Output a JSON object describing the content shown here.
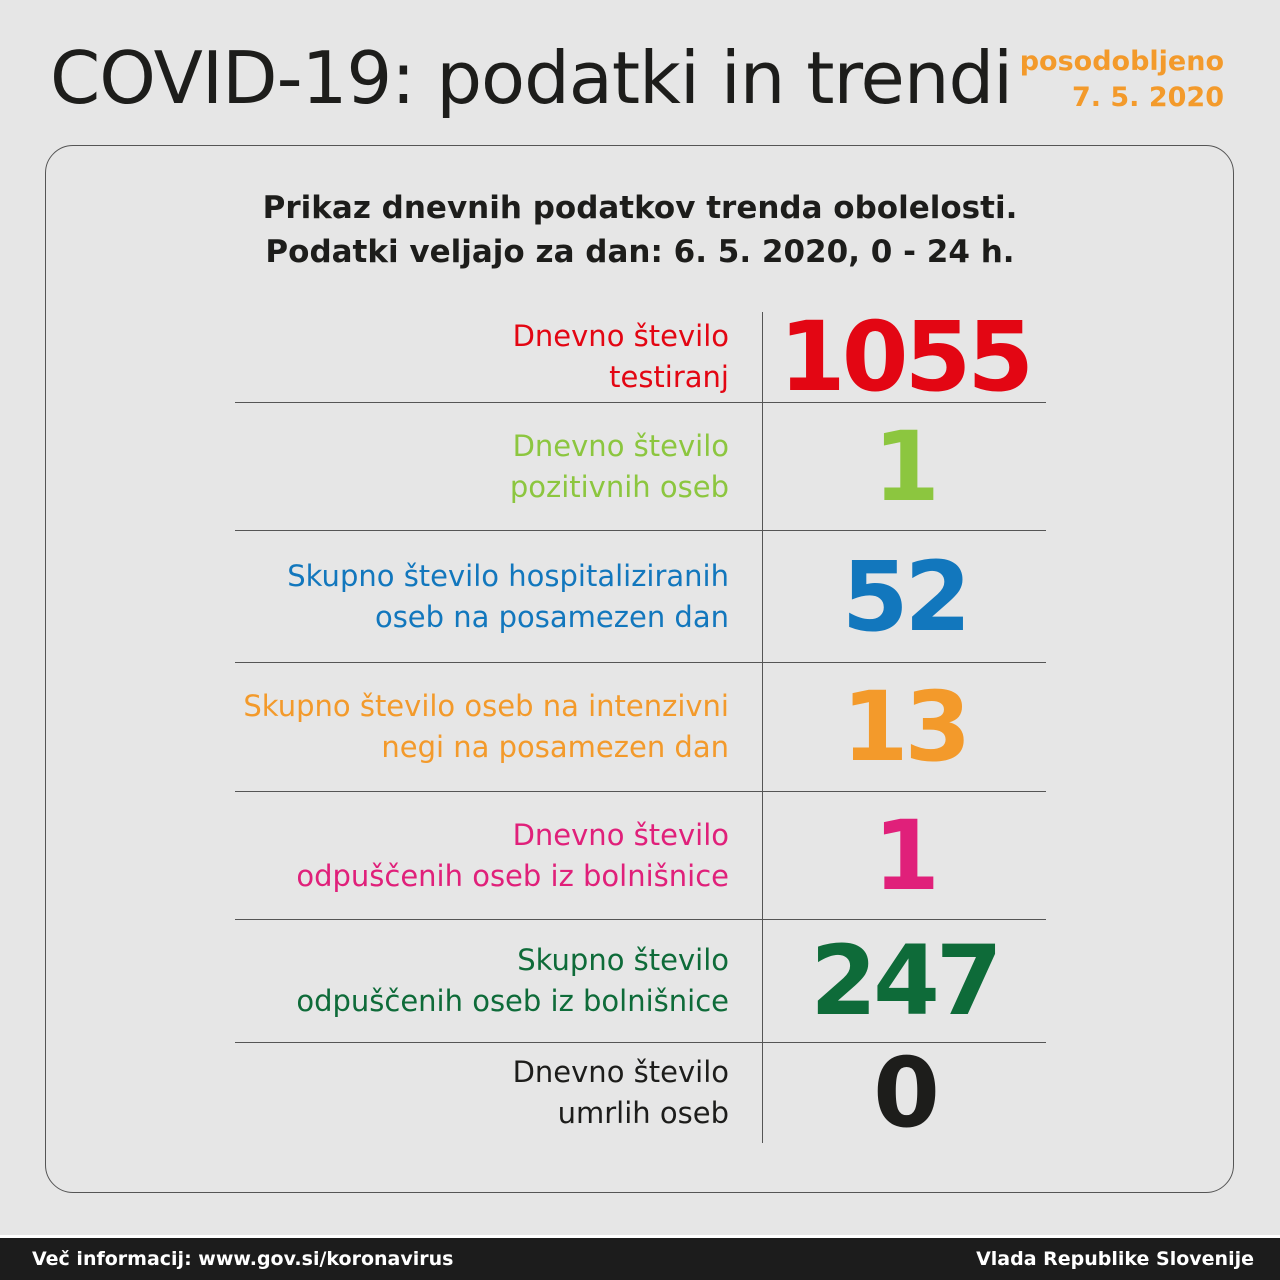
{
  "header": {
    "title": "COVID-19: podatki in trendi",
    "updated_label": "posodobljeno",
    "updated_date": "7. 5. 2020"
  },
  "card": {
    "subtitle_line1": "Prikaz dnevnih podatkov trenda obolelosti.",
    "subtitle_line2": "Podatki veljajo za dan: 6. 5. 2020, 0 - 24 h."
  },
  "rows": [
    {
      "line1": "Dnevno število",
      "line2": "testiranj",
      "value": "1055",
      "color": "#e30613"
    },
    {
      "line1": "Dnevno število",
      "line2": "pozitivnih oseb",
      "value": "1",
      "color": "#8cc63f"
    },
    {
      "line1": "Skupno število hospitaliziranih",
      "line2": "oseb na posamezen dan",
      "value": "52",
      "color": "#1277bd"
    },
    {
      "line1": "Skupno število oseb na intenzivni",
      "line2": "negi na posamezen dan",
      "value": "13",
      "color": "#f39a2b"
    },
    {
      "line1": "Dnevno število",
      "line2": "odpuščenih oseb iz bolnišnice",
      "value": "1",
      "color": "#e0207a"
    },
    {
      "line1": "Skupno število",
      "line2": "odpuščenih oseb iz bolnišnice",
      "value": "247",
      "color": "#0e6b39"
    },
    {
      "line1": "Dnevno število",
      "line2": "umrlih oseb",
      "value": "0",
      "color": "#1d1d1b"
    }
  ],
  "footer": {
    "info": "Več informacij: www.gov.si/koronavirus",
    "org": "Vlada Republike Slovenije"
  }
}
